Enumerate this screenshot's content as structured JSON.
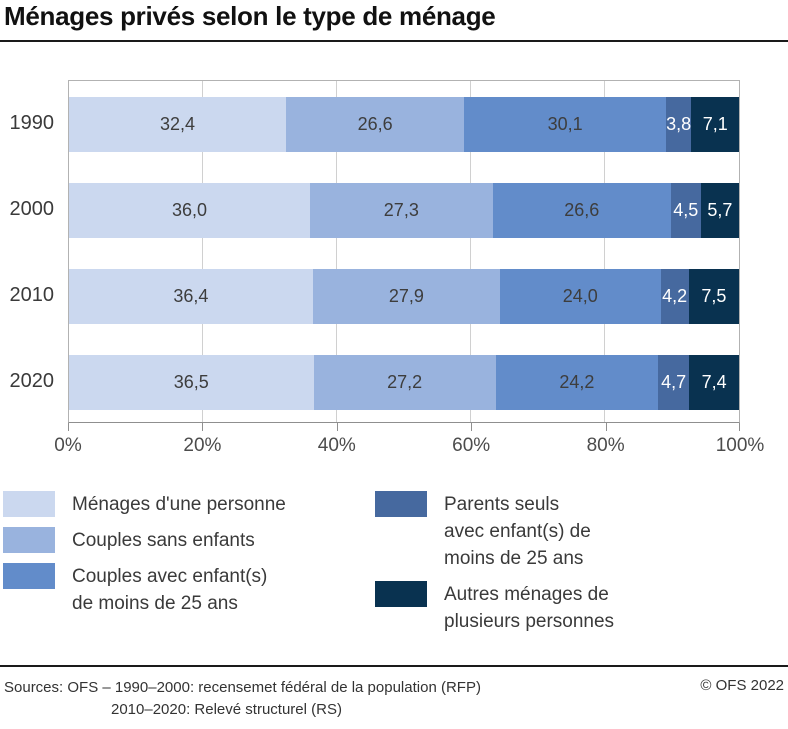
{
  "title": "Ménages privés selon le type de ménage",
  "chart_data": {
    "type": "bar",
    "orientation": "horizontal",
    "stacked": true,
    "unit": "%",
    "categories": [
      "1990",
      "2000",
      "2010",
      "2020"
    ],
    "series": [
      {
        "name": "Ménages d'une personne",
        "color": "#cbd8ef",
        "label_color": "#3d3d3d",
        "values": [
          32.4,
          36.0,
          36.4,
          36.5
        ],
        "labels": [
          "32,4",
          "36,0",
          "36,4",
          "36,5"
        ]
      },
      {
        "name": "Couples sans enfants",
        "color": "#99b3de",
        "label_color": "#3d3d3d",
        "values": [
          26.6,
          27.3,
          27.9,
          27.2
        ],
        "labels": [
          "26,6",
          "27,3",
          "27,9",
          "27,2"
        ]
      },
      {
        "name": "Couples avec enfant(s) de moins de 25 ans",
        "color": "#628cca",
        "label_color": "#3d3d3d",
        "values": [
          30.1,
          26.6,
          24.0,
          24.2
        ],
        "labels": [
          "30,1",
          "26,6",
          "24,0",
          "24,2"
        ]
      },
      {
        "name": "Parents seuls avec enfant(s) de moins de 25 ans",
        "color": "#46699f",
        "label_color": "#ffffff",
        "values": [
          3.8,
          4.5,
          4.2,
          4.7
        ],
        "labels": [
          "3,8",
          "4,5",
          "4,2",
          "4,7"
        ]
      },
      {
        "name": "Autres ménages de plusieurs personnes",
        "color": "#093250",
        "label_color": "#ffffff",
        "values": [
          7.1,
          5.7,
          7.5,
          7.4
        ],
        "labels": [
          "7,1",
          "5,7",
          "7,5",
          "7,4"
        ]
      }
    ],
    "xlim": [
      0,
      100
    ],
    "x_ticks": [
      {
        "label": "0%",
        "pct": 0
      },
      {
        "label": "20%",
        "pct": 20
      },
      {
        "label": "40%",
        "pct": 40
      },
      {
        "label": "60%",
        "pct": 60
      },
      {
        "label": "80%",
        "pct": 80
      },
      {
        "label": "100%",
        "pct": 100
      }
    ],
    "grid": true,
    "legend_position": "bottom"
  },
  "legend": {
    "columns": [
      [
        {
          "color": "#cbd8ef",
          "lines": [
            "Ménages d'une personne"
          ]
        },
        {
          "color": "#99b3de",
          "lines": [
            "Couples sans enfants"
          ]
        },
        {
          "color": "#628cca",
          "lines": [
            "Couples avec enfant(s)",
            "de moins de 25 ans"
          ]
        }
      ],
      [
        {
          "color": "#46699f",
          "lines": [
            "Parents seuls",
            "avec enfant(s) de",
            "moins de 25 ans"
          ]
        },
        {
          "color": "#093250",
          "lines": [
            "Autres ménages de",
            "plusieurs personnes"
          ]
        }
      ]
    ]
  },
  "footer": {
    "sources_line1": "Sources: OFS – 1990–2000: recensemet fédéral de la population (RFP)",
    "sources_line2": "2010–2020: Relevé structurel (RS)",
    "copyright": "© OFS 2022"
  }
}
